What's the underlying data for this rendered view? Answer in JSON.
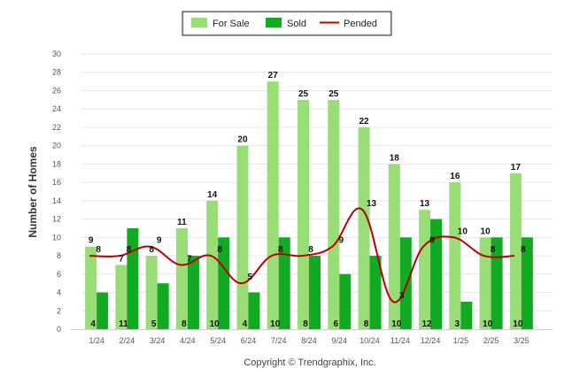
{
  "chart_data": {
    "type": "bar",
    "categories": [
      "1/24",
      "2/24",
      "3/24",
      "4/24",
      "5/24",
      "6/24",
      "7/24",
      "8/24",
      "9/24",
      "10/24",
      "11/24",
      "12/24",
      "1/25",
      "2/25",
      "3/25"
    ],
    "series": [
      {
        "name": "For Sale",
        "type": "bar",
        "color": "#99dd77",
        "values": [
          9,
          7,
          8,
          11,
          14,
          20,
          27,
          25,
          25,
          22,
          18,
          13,
          16,
          10,
          17
        ]
      },
      {
        "name": "Sold",
        "type": "bar",
        "color": "#11aa22",
        "values": [
          4,
          11,
          5,
          8,
          10,
          4,
          10,
          8,
          6,
          8,
          10,
          12,
          3,
          10,
          10
        ]
      },
      {
        "name": "Pended",
        "type": "line",
        "color": "#bb0000",
        "values": [
          8,
          8,
          9,
          7,
          8,
          5,
          8,
          8,
          9,
          13,
          3,
          9,
          10,
          8,
          8
        ]
      }
    ],
    "ylabel": "Number of Homes",
    "ylim": [
      0,
      30
    ],
    "yticks": [
      0,
      2,
      4,
      6,
      8,
      10,
      12,
      14,
      16,
      18,
      20,
      22,
      24,
      26,
      28,
      30
    ],
    "grid": true,
    "legend_position": "top-center"
  },
  "footer": "Copyright © Trendgraphix, Inc."
}
